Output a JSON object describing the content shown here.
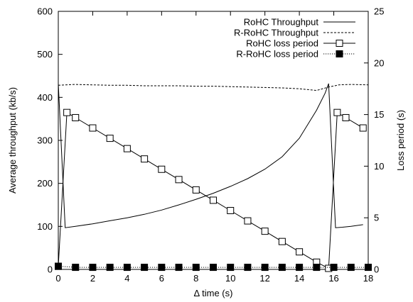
{
  "chart_data": {
    "type": "line",
    "title": "",
    "xlabel": "Δ time (s)",
    "ylabel": "Average throughput (kb/s)",
    "y2label": "Loss period (s)",
    "xlim": [
      0,
      18
    ],
    "ylim": [
      0,
      600
    ],
    "y2lim": [
      0,
      25
    ],
    "xticks": [
      "0",
      "2",
      "4",
      "6",
      "8",
      "10",
      "12",
      "14",
      "16",
      "18"
    ],
    "yticks": [
      "0",
      "100",
      "200",
      "300",
      "400",
      "500",
      "600"
    ],
    "y2ticks": [
      "0",
      "5",
      "10",
      "15",
      "20",
      "25"
    ],
    "grid": false,
    "legend_position": "top-right",
    "series": [
      {
        "name": "RoHC Throughput",
        "axis": "left",
        "style": "solid",
        "x": [
          0,
          0.4,
          1,
          2,
          3,
          4,
          5,
          6,
          7,
          8,
          9,
          10,
          11,
          12,
          13,
          14,
          15,
          15.5,
          15.7,
          16.1,
          16.5,
          17,
          17.7
        ],
        "y": [
          432,
          97,
          100,
          106,
          113,
          120,
          128,
          138,
          150,
          163,
          177,
          193,
          211,
          233,
          262,
          305,
          370,
          410,
          432,
          97,
          98,
          100,
          104
        ]
      },
      {
        "name": "R-RoHC Throughput",
        "axis": "left",
        "style": "dashed",
        "x": [
          0,
          1,
          2,
          3,
          4,
          5,
          6,
          7,
          8,
          9,
          10,
          11,
          12,
          13,
          14,
          15,
          15.7,
          16.3,
          17,
          18
        ],
        "y": [
          428,
          430,
          429,
          428,
          428,
          427,
          427,
          427,
          426,
          426,
          425,
          424,
          423,
          422,
          420,
          416,
          424,
          429,
          430,
          429
        ]
      },
      {
        "name": "RoHC loss period",
        "axis": "right",
        "style": "solid",
        "marker": "open-square",
        "x": [
          0,
          0.5,
          1,
          2,
          3,
          4,
          5,
          6,
          7,
          8,
          9,
          10,
          11,
          12,
          13,
          14,
          15,
          15.7,
          16.2,
          16.7,
          17.7
        ],
        "y": [
          0.3,
          15.2,
          14.7,
          13.7,
          12.7,
          11.7,
          10.7,
          9.7,
          8.7,
          7.7,
          6.7,
          5.7,
          4.7,
          3.7,
          2.7,
          1.7,
          0.7,
          0.1,
          15.2,
          14.7,
          13.7
        ]
      },
      {
        "name": "R-RoHC loss period",
        "axis": "right",
        "style": "dotted",
        "marker": "filled-square",
        "x": [
          0,
          1,
          2,
          3,
          4,
          5,
          6,
          7,
          8,
          9,
          10,
          11,
          12,
          13,
          14,
          15,
          16,
          17,
          18
        ],
        "y": [
          0.3,
          0.2,
          0.2,
          0.2,
          0.2,
          0.2,
          0.2,
          0.2,
          0.2,
          0.2,
          0.2,
          0.2,
          0.2,
          0.2,
          0.2,
          0.2,
          0.2,
          0.2,
          0.2
        ]
      }
    ]
  }
}
